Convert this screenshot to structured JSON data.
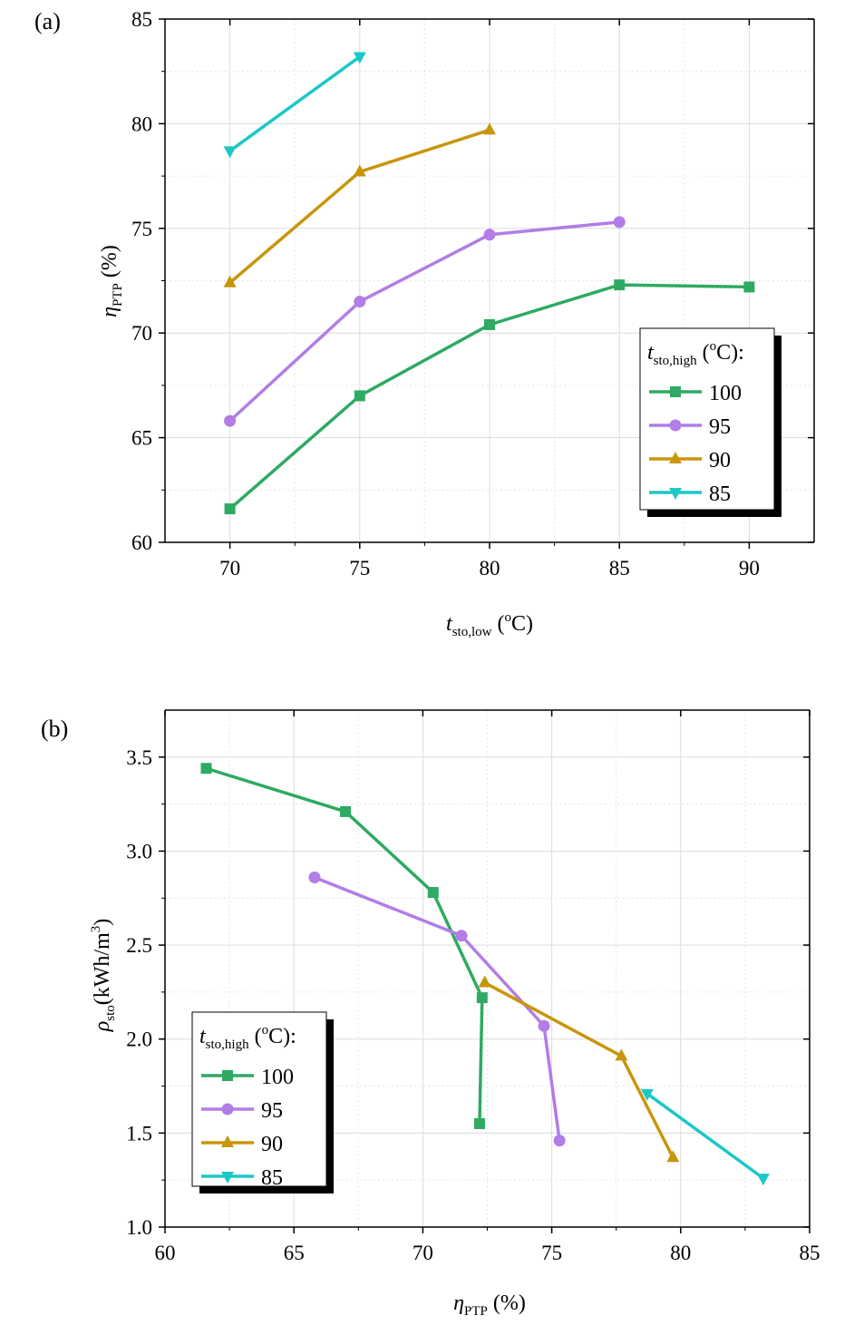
{
  "chart_data": [
    {
      "type": "line",
      "panel_label": "(a)",
      "xlabel": {
        "main": "t",
        "sub": "sto,low",
        "tail": " (",
        "sup": "o",
        "unit": "C)"
      },
      "ylabel": {
        "main": "η",
        "sub": "PTP",
        "tail": " (%)"
      },
      "xlim": [
        67.5,
        92.5
      ],
      "ylim": [
        60,
        85
      ],
      "xticks": [
        70,
        75,
        80,
        85,
        90
      ],
      "yticks": [
        60,
        65,
        70,
        75,
        80,
        85
      ],
      "grid": true,
      "legend_position": "right",
      "legend_title": {
        "main": "t",
        "sub": "sto,high",
        "tail": " (",
        "sup": "o",
        "unit": "C):"
      },
      "series": [
        {
          "name": "100",
          "color": "#2eaa62",
          "marker": "square",
          "x": [
            70,
            75,
            80,
            85,
            90
          ],
          "y": [
            61.6,
            67.0,
            70.4,
            72.3,
            72.2
          ]
        },
        {
          "name": "95",
          "color": "#b27de6",
          "marker": "circle",
          "x": [
            70,
            75,
            80,
            85
          ],
          "y": [
            65.8,
            71.5,
            74.7,
            75.3
          ]
        },
        {
          "name": "90",
          "color": "#c8960c",
          "marker": "triangle-up",
          "x": [
            70,
            75,
            80
          ],
          "y": [
            72.4,
            77.7,
            79.7
          ]
        },
        {
          "name": "85",
          "color": "#1cc7c7",
          "marker": "triangle-down",
          "x": [
            70,
            75
          ],
          "y": [
            78.7,
            83.2
          ]
        }
      ]
    },
    {
      "type": "line",
      "panel_label": "(b)",
      "xlabel": {
        "main": "η",
        "sub": "PTP",
        "tail": " (%)"
      },
      "ylabel": {
        "main": "ρ",
        "sub": "sto",
        "tail": "(kWh/m",
        "sup": "3",
        "unit": ")"
      },
      "xlim": [
        60,
        85
      ],
      "ylim": [
        1.0,
        3.75
      ],
      "xticks": [
        60,
        65,
        70,
        75,
        80,
        85
      ],
      "yticks": [
        "1.0",
        "1.5",
        "2.0",
        "2.5",
        "3.0",
        "3.5"
      ],
      "grid": true,
      "legend_position": "lower-left",
      "legend_title": {
        "main": "t",
        "sub": "sto,high",
        "tail": " (",
        "sup": "o",
        "unit": "C):"
      },
      "series": [
        {
          "name": "100",
          "color": "#2eaa62",
          "marker": "square",
          "x": [
            61.6,
            67.0,
            70.4,
            72.3,
            72.2
          ],
          "y": [
            3.44,
            3.21,
            2.78,
            2.22,
            1.55
          ]
        },
        {
          "name": "95",
          "color": "#b27de6",
          "marker": "circle",
          "x": [
            65.8,
            71.5,
            74.7,
            75.3
          ],
          "y": [
            2.86,
            2.55,
            2.07,
            1.46
          ]
        },
        {
          "name": "90",
          "color": "#c8960c",
          "marker": "triangle-up",
          "x": [
            72.4,
            77.7,
            79.7
          ],
          "y": [
            2.3,
            1.91,
            1.37
          ]
        },
        {
          "name": "85",
          "color": "#1cc7c7",
          "marker": "triangle-down",
          "x": [
            78.7,
            83.2
          ],
          "y": [
            1.71,
            1.26
          ]
        }
      ]
    }
  ]
}
